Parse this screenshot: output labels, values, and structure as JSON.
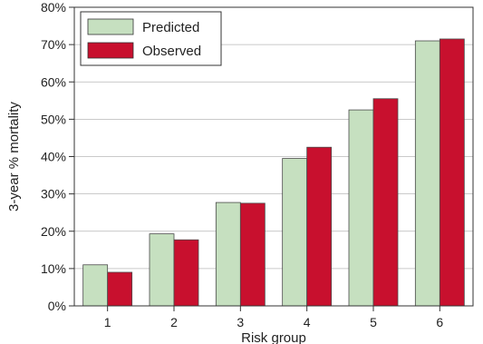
{
  "chart_data": {
    "type": "bar",
    "categories": [
      "1",
      "2",
      "3",
      "4",
      "5",
      "6"
    ],
    "series": [
      {
        "name": "Predicted",
        "values": [
          11,
          19.3,
          27.7,
          39.5,
          52.5,
          71
        ],
        "color": "#c6e0c0"
      },
      {
        "name": "Observed",
        "values": [
          9,
          17.7,
          27.5,
          42.5,
          55.5,
          71.5
        ],
        "color": "#c8102e"
      }
    ],
    "xlabel": "Risk group",
    "ylabel": "3-year % mortality",
    "ylim": [
      0,
      80
    ],
    "yticks": [
      0,
      10,
      20,
      30,
      40,
      50,
      60,
      70,
      80
    ],
    "ytick_labels": [
      "0%",
      "10%",
      "20%",
      "30%",
      "40%",
      "50%",
      "60%",
      "70%",
      "80%"
    ],
    "grid": true,
    "legend_position": "top-left"
  }
}
